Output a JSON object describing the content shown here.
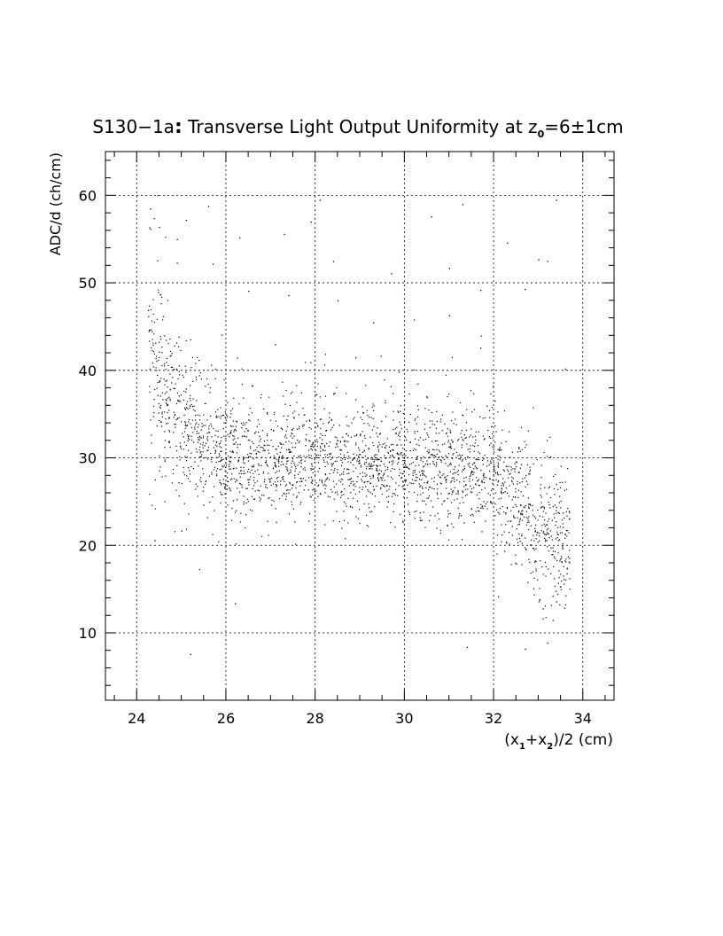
{
  "chart_data": {
    "type": "scatter",
    "title_prefix": "S130−1a",
    "title_colon": ":",
    "title_main": " Transverse Light Output Uniformity at z",
    "title_sub": "0",
    "title_suffix": "=6±1cm",
    "ylabel": "ADC/d (ch/cm)",
    "xlabel": {
      "open": "(x",
      "sub1": "1",
      "plus": "+x",
      "sub2": "2",
      "close": ")/2 (cm)"
    },
    "xlim": [
      23.3,
      34.7
    ],
    "ylim": [
      2.3,
      65
    ],
    "x_ticks": [
      24,
      26,
      28,
      30,
      32,
      34
    ],
    "x_tick_labels": [
      "24",
      "26",
      "28",
      "30",
      "32",
      "34"
    ],
    "y_ticks": [
      10,
      20,
      30,
      40,
      50,
      60
    ],
    "y_tick_labels": [
      "10",
      "20",
      "30",
      "40",
      "50",
      "60"
    ],
    "grid": true,
    "marker_color": "#000000",
    "density_profile": [
      {
        "x": 24.4,
        "y": 40,
        "spread": 7
      },
      {
        "x": 24.8,
        "y": 35,
        "spread": 5
      },
      {
        "x": 25.5,
        "y": 31,
        "spread": 3.5
      },
      {
        "x": 26.0,
        "y": 29.5,
        "spread": 3
      },
      {
        "x": 27.0,
        "y": 29.5,
        "spread": 3
      },
      {
        "x": 28.0,
        "y": 29.5,
        "spread": 3
      },
      {
        "x": 29.0,
        "y": 29,
        "spread": 3
      },
      {
        "x": 30.0,
        "y": 29,
        "spread": 3
      },
      {
        "x": 31.0,
        "y": 28.5,
        "spread": 3
      },
      {
        "x": 32.0,
        "y": 27.5,
        "spread": 3
      },
      {
        "x": 32.5,
        "y": 25,
        "spread": 3.5
      },
      {
        "x": 33.0,
        "y": 22,
        "spread": 4
      },
      {
        "x": 33.6,
        "y": 20,
        "spread": 4
      }
    ],
    "n_points": 2600,
    "outliers": [
      [
        24.3,
        58.5
      ],
      [
        24.3,
        56.2
      ],
      [
        24.5,
        56.4
      ],
      [
        25.1,
        57.2
      ],
      [
        24.9,
        55.0
      ],
      [
        25.6,
        58.8
      ],
      [
        26.3,
        55.2
      ],
      [
        27.3,
        55.6
      ],
      [
        27.9,
        57.0
      ],
      [
        28.1,
        59.5
      ],
      [
        30.6,
        57.6
      ],
      [
        31.3,
        59.0
      ],
      [
        33.4,
        59.5
      ],
      [
        32.3,
        54.6
      ],
      [
        24.9,
        52.3
      ],
      [
        25.7,
        52.2
      ],
      [
        28.4,
        52.5
      ],
      [
        29.7,
        51.1
      ],
      [
        31.0,
        51.7
      ],
      [
        33.0,
        52.7
      ],
      [
        33.2,
        52.5
      ],
      [
        26.5,
        49.1
      ],
      [
        27.4,
        48.6
      ],
      [
        28.5,
        48.0
      ],
      [
        31.7,
        49.2
      ],
      [
        32.7,
        49.3
      ],
      [
        29.3,
        45.5
      ],
      [
        31.0,
        46.3
      ],
      [
        25.2,
        7.6
      ],
      [
        26.2,
        13.4
      ],
      [
        31.4,
        8.4
      ],
      [
        32.7,
        8.2
      ],
      [
        33.2,
        8.9
      ],
      [
        25.0,
        21.7
      ],
      [
        24.4,
        20.6
      ],
      [
        25.4,
        17.3
      ],
      [
        33.1,
        12.8
      ],
      [
        33.4,
        13.6
      ],
      [
        32.1,
        14.2
      ],
      [
        27.1,
        43.0
      ],
      [
        28.9,
        41.5
      ],
      [
        30.2,
        40.1
      ],
      [
        31.7,
        42.6
      ],
      [
        33.6,
        40.2
      ],
      [
        25.9,
        44.1
      ]
    ]
  }
}
